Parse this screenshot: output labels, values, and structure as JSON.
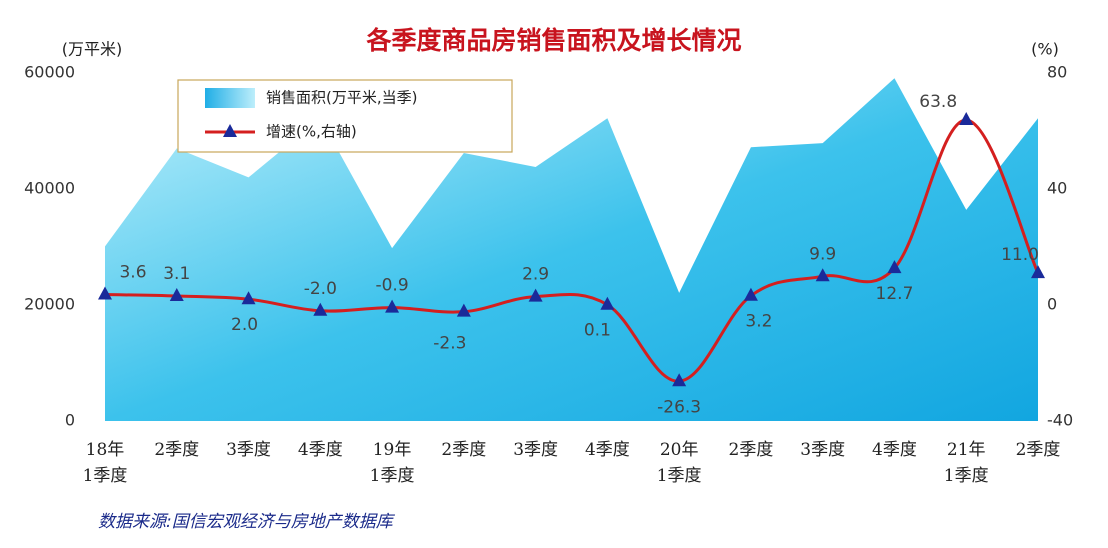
{
  "chart_data": {
    "type": "area-line",
    "title": "各季度商品房销售面积及增长情况",
    "y_unit": "(万平米)",
    "y2_unit": "(%)",
    "source": "数据来源:国信宏观经济与房地产数据库",
    "categories": [
      "18年\n1季度",
      "2季度",
      "3季度",
      "4季度",
      "19年\n1季度",
      "2季度",
      "3季度",
      "4季度",
      "20年\n1季度",
      "2季度",
      "3季度",
      "4季度",
      "21年\n1季度",
      "2季度"
    ],
    "series": [
      {
        "name": "销售面积(万平米,当季)",
        "type": "area",
        "color": "#29b6e8",
        "values": [
          30100,
          47000,
          42000,
          52200,
          29800,
          46200,
          43800,
          52200,
          22100,
          47200,
          47900,
          59100,
          36400,
          52200
        ]
      },
      {
        "name": "增速(%,右轴)",
        "type": "line",
        "axis": "y2",
        "color": "#d41f1f",
        "marker_color": "#1a2a9a",
        "values": [
          3.6,
          3.1,
          2.0,
          -2.0,
          -0.9,
          -2.3,
          2.9,
          0.1,
          -26.3,
          3.2,
          9.9,
          12.7,
          63.8,
          11.0
        ],
        "value_labels": [
          "3.6",
          "3.1",
          "2.0",
          "-2.0",
          "-0.9",
          "-2.3",
          "2.9",
          "0.1",
          "-26.3",
          "3.2",
          "9.9",
          "12.7",
          "63.8",
          "11.0"
        ]
      }
    ],
    "ylim": [
      0,
      60000
    ],
    "yticks": [
      0,
      20000,
      40000,
      60000
    ],
    "y2lim": [
      -40,
      80
    ],
    "y2ticks": [
      -40,
      0,
      40,
      80
    ]
  }
}
